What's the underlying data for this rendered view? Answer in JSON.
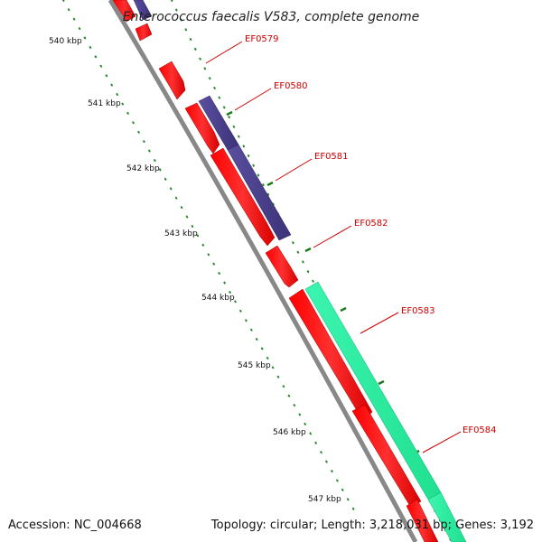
{
  "title": "Enterococcus faecalis V583, complete genome",
  "footer": {
    "accession": "Accession: NC_004668",
    "topology": "Topology: circular; Length: 3,218,031 bp; Genes: 3,192"
  },
  "ruler": [
    "540 kbp",
    "541 kbp",
    "542 kbp",
    "543 kbp",
    "544 kbp",
    "545 kbp",
    "546 kbp",
    "547 kbp"
  ],
  "genes": [
    "EF0579",
    "EF0580",
    "EF0581",
    "EF0582",
    "EF0583",
    "EF0584"
  ],
  "colors": {
    "forward_cds": "#ff0000",
    "reverse_cds": "#4a3f8c",
    "other_feature": "#2ef0a0",
    "backbone": "#888888",
    "tick": "#2a8a2a",
    "label": "#cc0000"
  }
}
